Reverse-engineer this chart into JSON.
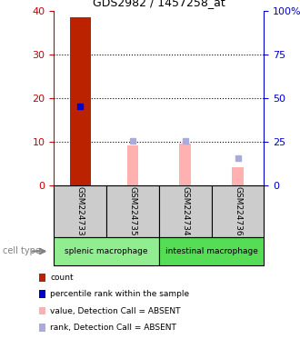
{
  "title": "GDS2982 / 1457258_at",
  "samples": [
    "GSM224733",
    "GSM224735",
    "GSM224734",
    "GSM224736"
  ],
  "count_values": [
    38.5,
    0,
    0,
    0
  ],
  "percentile_values": [
    18.0,
    0,
    0,
    0
  ],
  "absent_value_bars": [
    0,
    9.0,
    9.5,
    4.0
  ],
  "absent_rank_squares": [
    0,
    10.2,
    10.2,
    6.2
  ],
  "groups": [
    {
      "label": "splenic macrophage",
      "start": 0,
      "end": 2
    },
    {
      "label": "intestinal macrophage",
      "start": 2,
      "end": 4
    }
  ],
  "ylim_left": [
    0,
    40
  ],
  "ylim_right": [
    0,
    100
  ],
  "left_ticks": [
    0,
    10,
    20,
    30,
    40
  ],
  "right_ticks": [
    0,
    25,
    50,
    75,
    100
  ],
  "right_tick_labels": [
    "0",
    "25",
    "50",
    "75",
    "100%"
  ],
  "colors": {
    "count": "#BB2200",
    "percentile": "#0000CC",
    "absent_value": "#FFB0B0",
    "absent_rank": "#AAAADD",
    "axis_left": "#CC0000",
    "axis_right": "#0000CC",
    "sample_box_bg": "#CCCCCC",
    "group_label_bg1": "#90EE90",
    "group_label_bg2": "#55DD55"
  },
  "legend_items": [
    {
      "color": "#BB2200",
      "label": "count"
    },
    {
      "color": "#0000CC",
      "label": "percentile rank within the sample"
    },
    {
      "color": "#FFB0B0",
      "label": "value, Detection Call = ABSENT"
    },
    {
      "color": "#AAAADD",
      "label": "rank, Detection Call = ABSENT"
    }
  ],
  "cell_type_label": "cell type"
}
